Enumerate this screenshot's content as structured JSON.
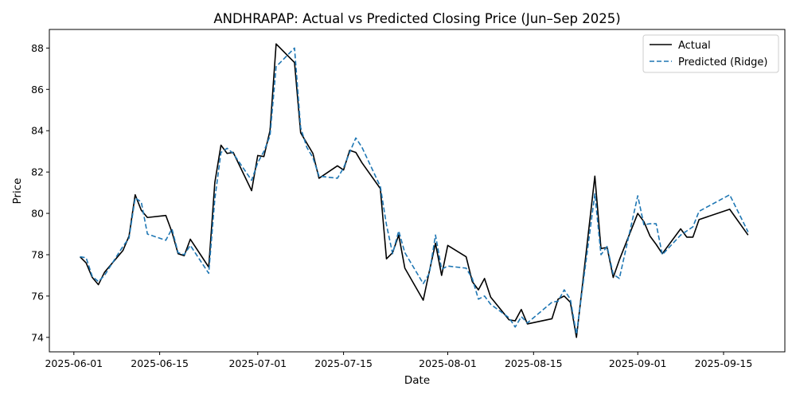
{
  "chart_data": {
    "type": "line",
    "title": "ANDHRAPAP: Actual vs Predicted Closing Price (Jun–Sep 2025)",
    "xlabel": "Date",
    "ylabel": "Price",
    "x_ticks": [
      "2025-06-01",
      "2025-06-15",
      "2025-07-01",
      "2025-07-15",
      "2025-08-01",
      "2025-08-15",
      "2025-09-01",
      "2025-09-15"
    ],
    "y_ticks": [
      74,
      76,
      78,
      80,
      82,
      84,
      86,
      88
    ],
    "xlim": [
      "2025-05-28",
      "2025-09-25"
    ],
    "ylim": [
      73.3,
      88.9
    ],
    "grid": false,
    "legend_position": "top-right",
    "series": [
      {
        "name": "Actual",
        "color": "#000000",
        "dash": "solid",
        "points": [
          [
            "2025-06-02",
            77.9
          ],
          [
            "2025-06-03",
            77.6
          ],
          [
            "2025-06-04",
            76.9
          ],
          [
            "2025-06-05",
            76.55
          ],
          [
            "2025-06-06",
            77.15
          ],
          [
            "2025-06-09",
            78.2
          ],
          [
            "2025-06-10",
            78.9
          ],
          [
            "2025-06-11",
            80.9
          ],
          [
            "2025-06-12",
            80.15
          ],
          [
            "2025-06-13",
            79.8
          ],
          [
            "2025-06-16",
            79.9
          ],
          [
            "2025-06-17",
            79.1
          ],
          [
            "2025-06-18",
            78.05
          ],
          [
            "2025-06-19",
            77.95
          ],
          [
            "2025-06-20",
            78.75
          ],
          [
            "2025-06-23",
            77.4
          ],
          [
            "2025-06-24",
            81.5
          ],
          [
            "2025-06-25",
            83.3
          ],
          [
            "2025-06-26",
            82.9
          ],
          [
            "2025-06-27",
            82.95
          ],
          [
            "2025-06-30",
            81.1
          ],
          [
            "2025-07-01",
            82.8
          ],
          [
            "2025-07-02",
            82.75
          ],
          [
            "2025-07-03",
            84.0
          ],
          [
            "2025-07-04",
            88.2
          ],
          [
            "2025-07-07",
            87.3
          ],
          [
            "2025-07-08",
            83.9
          ],
          [
            "2025-07-09",
            83.4
          ],
          [
            "2025-07-10",
            82.9
          ],
          [
            "2025-07-11",
            81.7
          ],
          [
            "2025-07-14",
            82.3
          ],
          [
            "2025-07-15",
            82.1
          ],
          [
            "2025-07-16",
            83.05
          ],
          [
            "2025-07-17",
            82.95
          ],
          [
            "2025-07-18",
            82.45
          ],
          [
            "2025-07-21",
            81.2
          ],
          [
            "2025-07-22",
            77.8
          ],
          [
            "2025-07-23",
            78.1
          ],
          [
            "2025-07-24",
            78.95
          ],
          [
            "2025-07-25",
            77.35
          ],
          [
            "2025-07-28",
            75.8
          ],
          [
            "2025-07-29",
            77.2
          ],
          [
            "2025-07-30",
            78.55
          ],
          [
            "2025-07-31",
            77.0
          ],
          [
            "2025-08-01",
            78.45
          ],
          [
            "2025-08-04",
            77.9
          ],
          [
            "2025-08-05",
            76.7
          ],
          [
            "2025-08-06",
            76.3
          ],
          [
            "2025-08-07",
            76.85
          ],
          [
            "2025-08-08",
            75.95
          ],
          [
            "2025-08-11",
            74.85
          ],
          [
            "2025-08-12",
            74.8
          ],
          [
            "2025-08-13",
            75.35
          ],
          [
            "2025-08-14",
            74.65
          ],
          [
            "2025-08-18",
            74.9
          ],
          [
            "2025-08-19",
            75.85
          ],
          [
            "2025-08-20",
            76.0
          ],
          [
            "2025-08-21",
            75.7
          ],
          [
            "2025-08-22",
            74.0
          ],
          [
            "2025-08-25",
            81.8
          ],
          [
            "2025-08-26",
            78.3
          ],
          [
            "2025-08-27",
            78.35
          ],
          [
            "2025-08-28",
            76.9
          ],
          [
            "2025-08-29",
            77.75
          ],
          [
            "2025-09-01",
            80.0
          ],
          [
            "2025-09-02",
            79.6
          ],
          [
            "2025-09-03",
            78.9
          ],
          [
            "2025-09-04",
            78.5
          ],
          [
            "2025-09-05",
            78.05
          ],
          [
            "2025-09-08",
            79.25
          ],
          [
            "2025-09-09",
            78.85
          ],
          [
            "2025-09-10",
            78.85
          ],
          [
            "2025-09-11",
            79.7
          ],
          [
            "2025-09-16",
            80.2
          ],
          [
            "2025-09-19",
            78.95
          ]
        ]
      },
      {
        "name": "Predicted (Ridge)",
        "color": "#1f77b4",
        "dash": "dashed",
        "points": [
          [
            "2025-06-02",
            77.9
          ],
          [
            "2025-06-03",
            77.85
          ],
          [
            "2025-06-04",
            76.95
          ],
          [
            "2025-06-05",
            76.7
          ],
          [
            "2025-06-06",
            77.0
          ],
          [
            "2025-06-09",
            78.4
          ],
          [
            "2025-06-10",
            78.8
          ],
          [
            "2025-06-11",
            80.75
          ],
          [
            "2025-06-12",
            80.55
          ],
          [
            "2025-06-13",
            79.0
          ],
          [
            "2025-06-16",
            78.7
          ],
          [
            "2025-06-17",
            79.25
          ],
          [
            "2025-06-18",
            78.1
          ],
          [
            "2025-06-19",
            78.0
          ],
          [
            "2025-06-20",
            78.45
          ],
          [
            "2025-06-23",
            77.1
          ],
          [
            "2025-06-24",
            80.7
          ],
          [
            "2025-06-25",
            82.95
          ],
          [
            "2025-06-26",
            83.15
          ],
          [
            "2025-06-27",
            82.9
          ],
          [
            "2025-06-30",
            81.6
          ],
          [
            "2025-07-01",
            82.45
          ],
          [
            "2025-07-02",
            83.0
          ],
          [
            "2025-07-03",
            83.75
          ],
          [
            "2025-07-04",
            87.1
          ],
          [
            "2025-07-07",
            88.0
          ],
          [
            "2025-07-08",
            84.15
          ],
          [
            "2025-07-09",
            83.2
          ],
          [
            "2025-07-10",
            82.7
          ],
          [
            "2025-07-11",
            81.8
          ],
          [
            "2025-07-14",
            81.7
          ],
          [
            "2025-07-15",
            82.2
          ],
          [
            "2025-07-16",
            82.95
          ],
          [
            "2025-07-17",
            83.65
          ],
          [
            "2025-07-18",
            83.2
          ],
          [
            "2025-07-21",
            81.3
          ],
          [
            "2025-07-22",
            79.45
          ],
          [
            "2025-07-23",
            78.05
          ],
          [
            "2025-07-24",
            79.15
          ],
          [
            "2025-07-25",
            78.1
          ],
          [
            "2025-07-28",
            76.6
          ],
          [
            "2025-07-29",
            77.1
          ],
          [
            "2025-07-30",
            78.95
          ],
          [
            "2025-07-31",
            77.3
          ],
          [
            "2025-08-01",
            77.45
          ],
          [
            "2025-08-04",
            77.35
          ],
          [
            "2025-08-05",
            76.85
          ],
          [
            "2025-08-06",
            75.85
          ],
          [
            "2025-08-07",
            76.0
          ],
          [
            "2025-08-08",
            75.6
          ],
          [
            "2025-08-11",
            74.95
          ],
          [
            "2025-08-12",
            74.5
          ],
          [
            "2025-08-13",
            75.0
          ],
          [
            "2025-08-14",
            74.7
          ],
          [
            "2025-08-18",
            75.7
          ],
          [
            "2025-08-19",
            75.75
          ],
          [
            "2025-08-20",
            76.3
          ],
          [
            "2025-08-21",
            75.85
          ],
          [
            "2025-08-22",
            74.15
          ],
          [
            "2025-08-25",
            80.95
          ],
          [
            "2025-08-26",
            78.0
          ],
          [
            "2025-08-27",
            78.4
          ],
          [
            "2025-08-28",
            77.05
          ],
          [
            "2025-08-29",
            76.85
          ],
          [
            "2025-09-01",
            80.85
          ],
          [
            "2025-09-02",
            79.45
          ],
          [
            "2025-09-03",
            79.5
          ],
          [
            "2025-09-04",
            79.5
          ],
          [
            "2025-09-05",
            78.0
          ],
          [
            "2025-09-08",
            78.95
          ],
          [
            "2025-09-09",
            79.15
          ],
          [
            "2025-09-10",
            79.35
          ],
          [
            "2025-09-11",
            80.1
          ],
          [
            "2025-09-16",
            80.9
          ],
          [
            "2025-09-19",
            79.1
          ]
        ]
      }
    ]
  }
}
